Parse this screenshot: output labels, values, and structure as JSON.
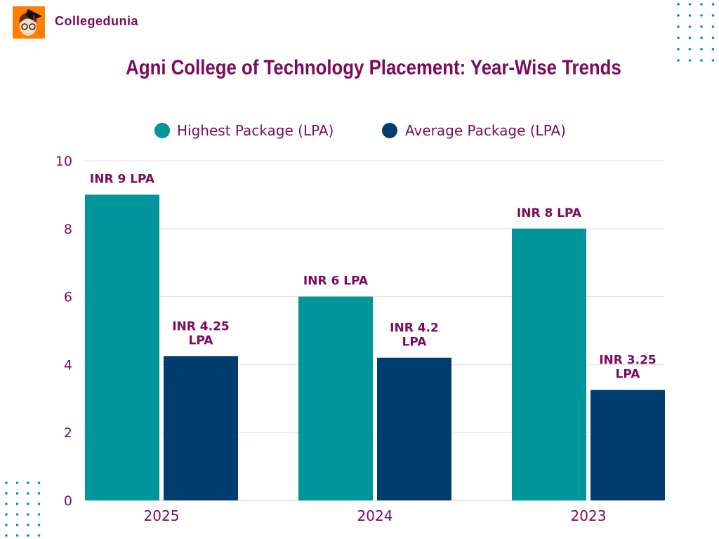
{
  "brand": {
    "name": "Collegedunia",
    "logo_icon": "student-cartoon-icon"
  },
  "colors": {
    "highest": "#00949b",
    "average": "#003d6f",
    "title": "#7d0a5a",
    "dots": "#00949b"
  },
  "chart_data": {
    "type": "bar",
    "title": "Agni College of Technology Placement: Year-Wise Trends",
    "categories": [
      "2025",
      "2024",
      "2023"
    ],
    "series": [
      {
        "name": "Highest Package (LPA)",
        "values": [
          9,
          6,
          8
        ],
        "labels": [
          "INR 9 LPA",
          "INR 6 LPA",
          "INR 8 LPA"
        ]
      },
      {
        "name": "Average Package (LPA)",
        "values": [
          4.25,
          4.2,
          3.25
        ],
        "labels": [
          "INR 4.25 LPA",
          "INR 4.2 LPA",
          "INR 3.25 LPA"
        ]
      }
    ],
    "ylim": [
      0,
      10
    ],
    "yticks": [
      0,
      2,
      4,
      6,
      8,
      10
    ],
    "grid": true,
    "legend": "top"
  }
}
